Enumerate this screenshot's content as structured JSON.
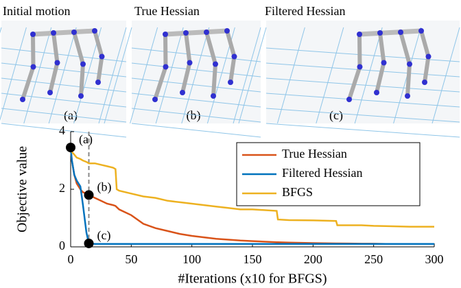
{
  "panels": [
    {
      "title": "Initial motion",
      "label": "(a)"
    },
    {
      "title": "True Hessian",
      "label": "(b)"
    },
    {
      "title": "Filtered Hessian",
      "label": "(c)"
    }
  ],
  "chart_data": {
    "type": "line",
    "x_label": "#Iterations (x10 for BFGS)",
    "y_label": "Objective value",
    "x": [
      0,
      1,
      3,
      5,
      8,
      10,
      13,
      15,
      20,
      25,
      30,
      35,
      37,
      38,
      40,
      50,
      60,
      70,
      80,
      90,
      100,
      110,
      120,
      130,
      140,
      150,
      170,
      171,
      180,
      200,
      219,
      220,
      240,
      250,
      260,
      280,
      300
    ],
    "series": [
      {
        "name": "True Hessian",
        "color": "#d95319",
        "values": [
          3.45,
          3.0,
          2.5,
          2.2,
          2.0,
          1.9,
          1.85,
          1.8,
          1.7,
          1.6,
          1.5,
          1.45,
          1.42,
          1.38,
          1.3,
          1.1,
          0.8,
          0.65,
          0.55,
          0.45,
          0.38,
          0.33,
          0.28,
          0.25,
          0.22,
          0.2,
          0.16,
          0.16,
          0.15,
          0.13,
          0.12,
          0.12,
          0.11,
          0.11,
          0.1,
          0.1,
          0.1
        ]
      },
      {
        "name": "Filtered Hessian",
        "color": "#0072bd",
        "values": [
          3.45,
          3.0,
          2.5,
          2.3,
          2.1,
          1.5,
          0.5,
          0.12,
          0.1,
          0.1,
          0.1,
          0.1,
          0.1,
          0.1,
          0.1,
          0.1,
          0.1,
          0.1,
          0.1,
          0.1,
          0.1,
          0.1,
          0.1,
          0.1,
          0.1,
          0.1,
          0.1,
          0.1,
          0.1,
          0.1,
          0.1,
          0.1,
          0.1,
          0.1,
          0.1,
          0.1,
          0.1
        ]
      },
      {
        "name": "BFGS",
        "color": "#edb120",
        "values": [
          3.45,
          3.3,
          3.2,
          3.1,
          3.05,
          3.0,
          2.95,
          2.9,
          2.9,
          2.85,
          2.8,
          2.75,
          2.7,
          2.0,
          1.95,
          1.85,
          1.75,
          1.7,
          1.6,
          1.55,
          1.5,
          1.45,
          1.4,
          1.35,
          1.3,
          1.3,
          1.25,
          0.95,
          0.93,
          0.92,
          0.9,
          0.75,
          0.75,
          0.73,
          0.72,
          0.7,
          0.7
        ]
      }
    ],
    "markers": [
      {
        "x": 0,
        "y": 3.45,
        "label": "(a)"
      },
      {
        "x": 15,
        "y": 1.8,
        "label": "(b)"
      },
      {
        "x": 15,
        "y": 0.12,
        "label": "(c)"
      }
    ],
    "vline_x": 15,
    "xlim": [
      0,
      300
    ],
    "xticks": [
      0,
      50,
      100,
      150,
      200,
      250,
      300
    ],
    "ylim": [
      0,
      4
    ],
    "yticks": [
      0,
      2,
      4
    ],
    "legend": "upper right"
  }
}
